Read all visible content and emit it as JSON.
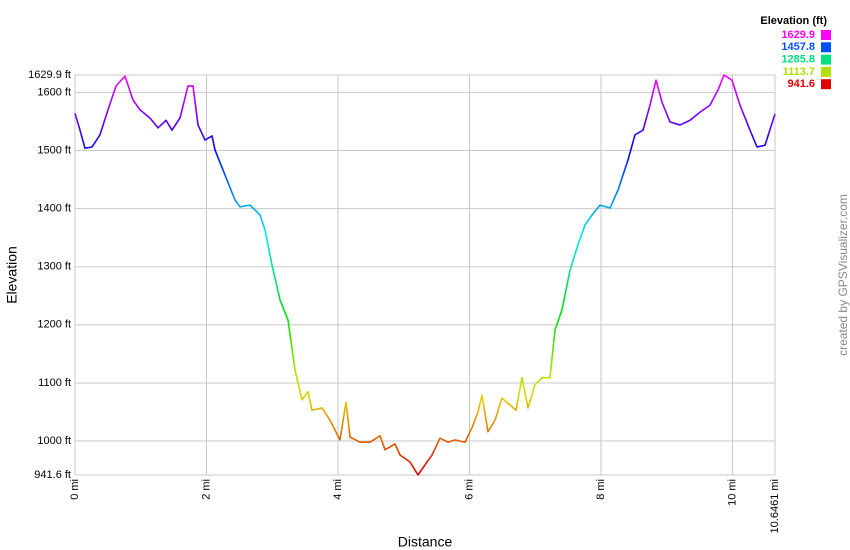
{
  "chart_data": {
    "type": "line",
    "x_label": "Distance",
    "y_label": "Elevation",
    "credit": "created by GPSVisualizer.com",
    "grid": true,
    "xlim": [
      0,
      10.6461
    ],
    "ylim": [
      941.6,
      1629.9
    ],
    "xticks": [
      {
        "value": 0,
        "label": "0 mi"
      },
      {
        "value": 2,
        "label": "2 mi"
      },
      {
        "value": 4,
        "label": "4 mi"
      },
      {
        "value": 6,
        "label": "6 mi"
      },
      {
        "value": 8,
        "label": "8 mi"
      },
      {
        "value": 10,
        "label": "10 mi"
      },
      {
        "value": 10.6461,
        "label": "10.6461 mi"
      }
    ],
    "yticks": [
      {
        "value": 941.6,
        "label": "941.6 ft"
      },
      {
        "value": 1000,
        "label": "1000 ft"
      },
      {
        "value": 1100,
        "label": "1100 ft"
      },
      {
        "value": 1200,
        "label": "1200 ft"
      },
      {
        "value": 1300,
        "label": "1300 ft"
      },
      {
        "value": 1400,
        "label": "1400 ft"
      },
      {
        "value": 1500,
        "label": "1500 ft"
      },
      {
        "value": 1600,
        "label": "1600 ft"
      },
      {
        "value": 1629.9,
        "label": "1629.9 ft"
      }
    ],
    "legend": {
      "title": "Elevation (ft)",
      "entries": [
        {
          "value": 1629.9,
          "color": "#ff00ff"
        },
        {
          "value": 1457.8,
          "color": "#0050ff"
        },
        {
          "value": 1285.8,
          "color": "#00e080"
        },
        {
          "value": 1113.7,
          "color": "#b0e000"
        },
        {
          "value": 941.6,
          "color": "#e00000"
        }
      ]
    },
    "x": [
      0,
      0.076,
      0.152,
      0.259,
      0.38,
      0.502,
      0.624,
      0.76,
      0.882,
      0.989,
      1.14,
      1.262,
      1.384,
      1.475,
      1.597,
      1.719,
      1.795,
      1.871,
      1.977,
      2.084,
      2.129,
      2.281,
      2.433,
      2.51,
      2.662,
      2.814,
      2.89,
      2.996,
      3.118,
      3.24,
      3.346,
      3.452,
      3.544,
      3.605,
      3.757,
      3.878,
      4.03,
      4.122,
      4.183,
      4.335,
      4.487,
      4.639,
      4.715,
      4.867,
      4.943,
      5.095,
      5.217,
      5.323,
      5.43,
      5.551,
      5.673,
      5.779,
      5.932,
      6.038,
      6.129,
      6.19,
      6.281,
      6.388,
      6.494,
      6.616,
      6.707,
      6.798,
      6.89,
      6.996,
      7.103,
      7.224,
      7.3,
      7.407,
      7.529,
      7.65,
      7.757,
      7.863,
      7.985,
      8.137,
      8.259,
      8.411,
      8.517,
      8.639,
      8.745,
      8.837,
      8.928,
      9.049,
      9.202,
      9.354,
      9.506,
      9.658,
      9.779,
      9.871,
      9.992,
      10.114,
      10.266,
      10.373,
      10.494,
      10.6461
    ],
    "series": [
      {
        "values": [
          1564,
          1535,
          1504,
          1506,
          1527,
          1570,
          1611,
          1628,
          1587,
          1570,
          1556,
          1539,
          1552,
          1535,
          1556,
          1611,
          1611,
          1544,
          1518,
          1525,
          1501,
          1458,
          1415,
          1403,
          1406,
          1389,
          1363,
          1303,
          1243,
          1208,
          1122,
          1071,
          1085,
          1053,
          1057,
          1036,
          1002,
          1067,
          1007,
          998,
          998,
          1009,
          985,
          995,
          976,
          964,
          941.6,
          959,
          976,
          1005,
          998,
          1002,
          998,
          1023,
          1050,
          1079,
          1016,
          1036,
          1074,
          1062,
          1053,
          1109,
          1057,
          1097,
          1109,
          1109,
          1191,
          1226,
          1294,
          1338,
          1372,
          1389,
          1406,
          1401,
          1432,
          1484,
          1527,
          1535,
          1578,
          1621,
          1583,
          1549,
          1544,
          1552,
          1566,
          1578,
          1604,
          1629.9,
          1621,
          1578,
          1535,
          1506,
          1509,
          1563
        ]
      }
    ]
  }
}
